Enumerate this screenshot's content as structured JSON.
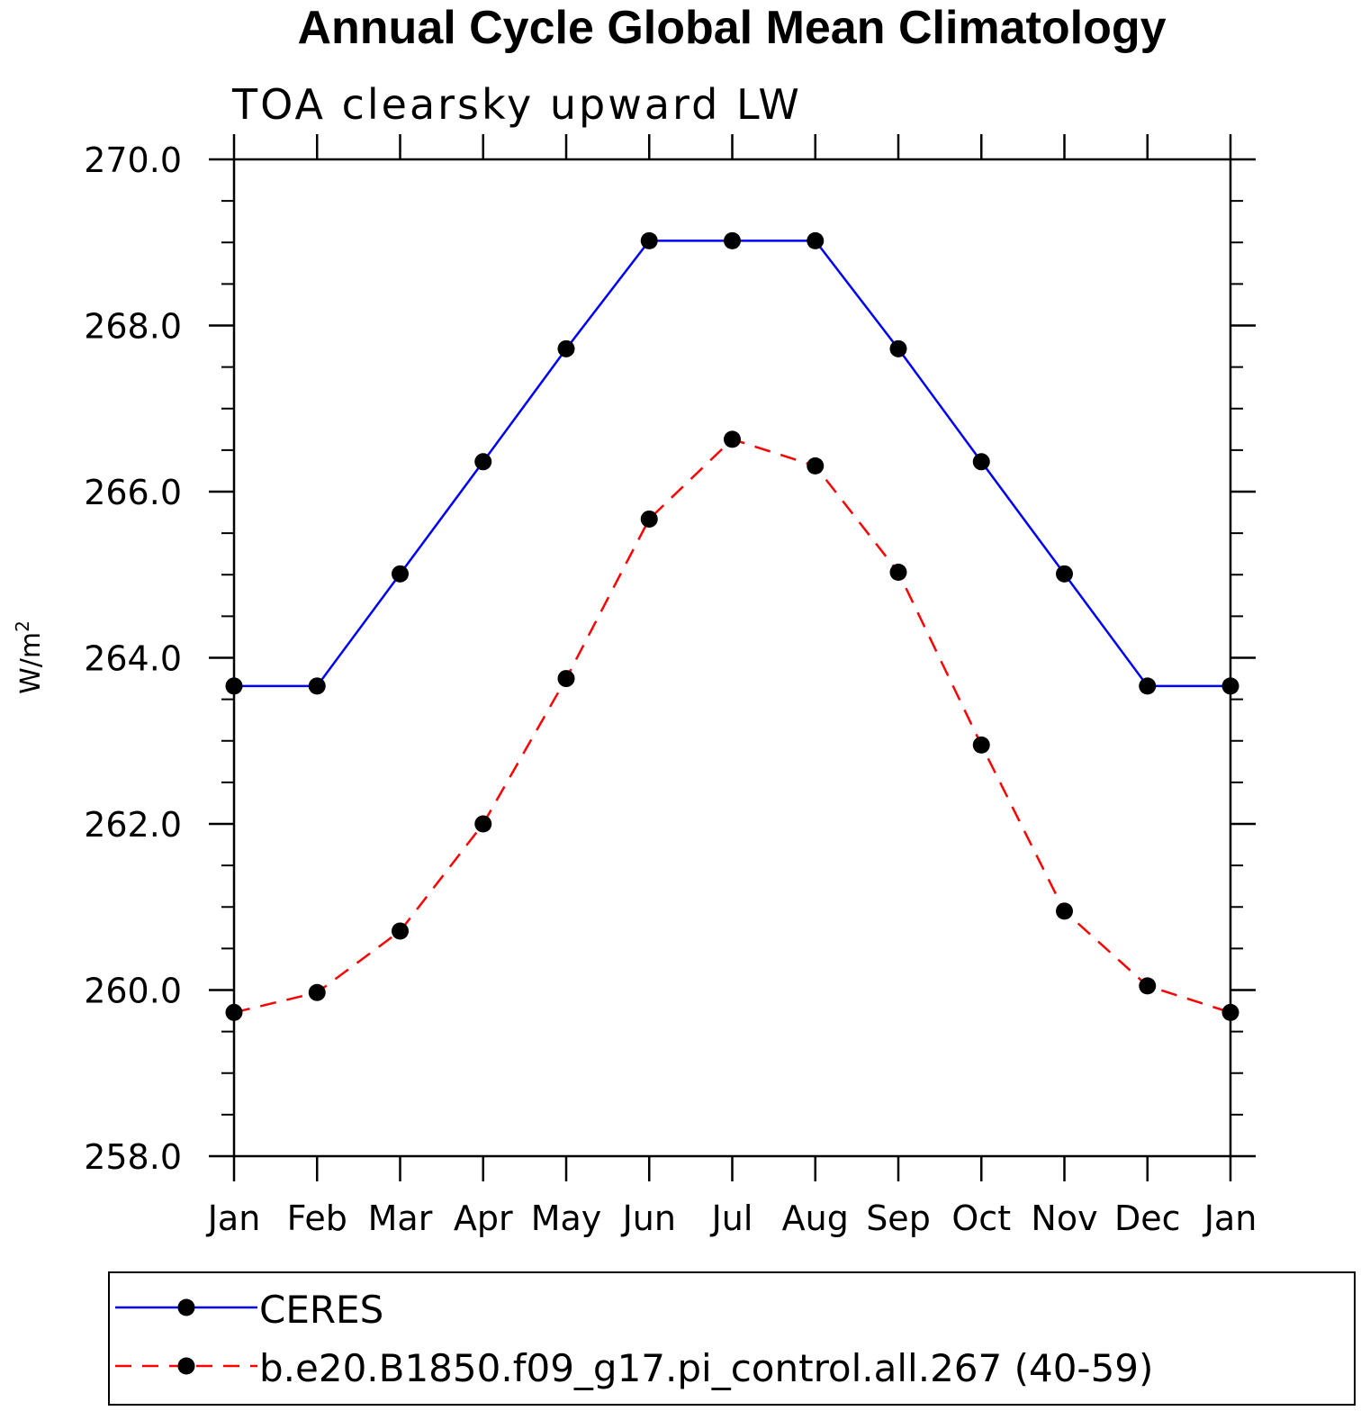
{
  "chart_data": {
    "type": "line",
    "title": "Annual Cycle Global Mean Climatology",
    "subtitle": "TOA clearsky upward LW",
    "ylabel": "W/m",
    "ylabel_superscript": "2",
    "categories": [
      "Jan",
      "Feb",
      "Mar",
      "Apr",
      "May",
      "Jun",
      "Jul",
      "Aug",
      "Sep",
      "Oct",
      "Nov",
      "Dec",
      "Jan"
    ],
    "ylim": [
      258.0,
      270.0
    ],
    "yticks": [
      258.0,
      260.0,
      262.0,
      264.0,
      266.0,
      268.0,
      270.0
    ],
    "ytick_labels": [
      "258.0",
      "260.0",
      "262.0",
      "264.0",
      "266.0",
      "268.0",
      "270.0"
    ],
    "grid": false,
    "legend_position": "bottom",
    "series": [
      {
        "name": "CERES",
        "color": "#0000ff",
        "style": "solid",
        "marker": "filled-circle",
        "values": [
          263.66,
          263.66,
          265.01,
          266.36,
          267.72,
          269.02,
          269.02,
          269.02,
          267.72,
          266.36,
          265.01,
          263.66,
          263.66
        ]
      },
      {
        "name": "b.e20.B1850.f09_g17.pi_control.all.267 (40-59)",
        "color": "#ff0000",
        "style": "dashed",
        "marker": "filled-circle",
        "values": [
          259.73,
          259.97,
          260.71,
          262.0,
          263.75,
          265.67,
          266.63,
          266.31,
          265.03,
          262.95,
          260.95,
          260.05,
          259.73
        ]
      }
    ]
  }
}
